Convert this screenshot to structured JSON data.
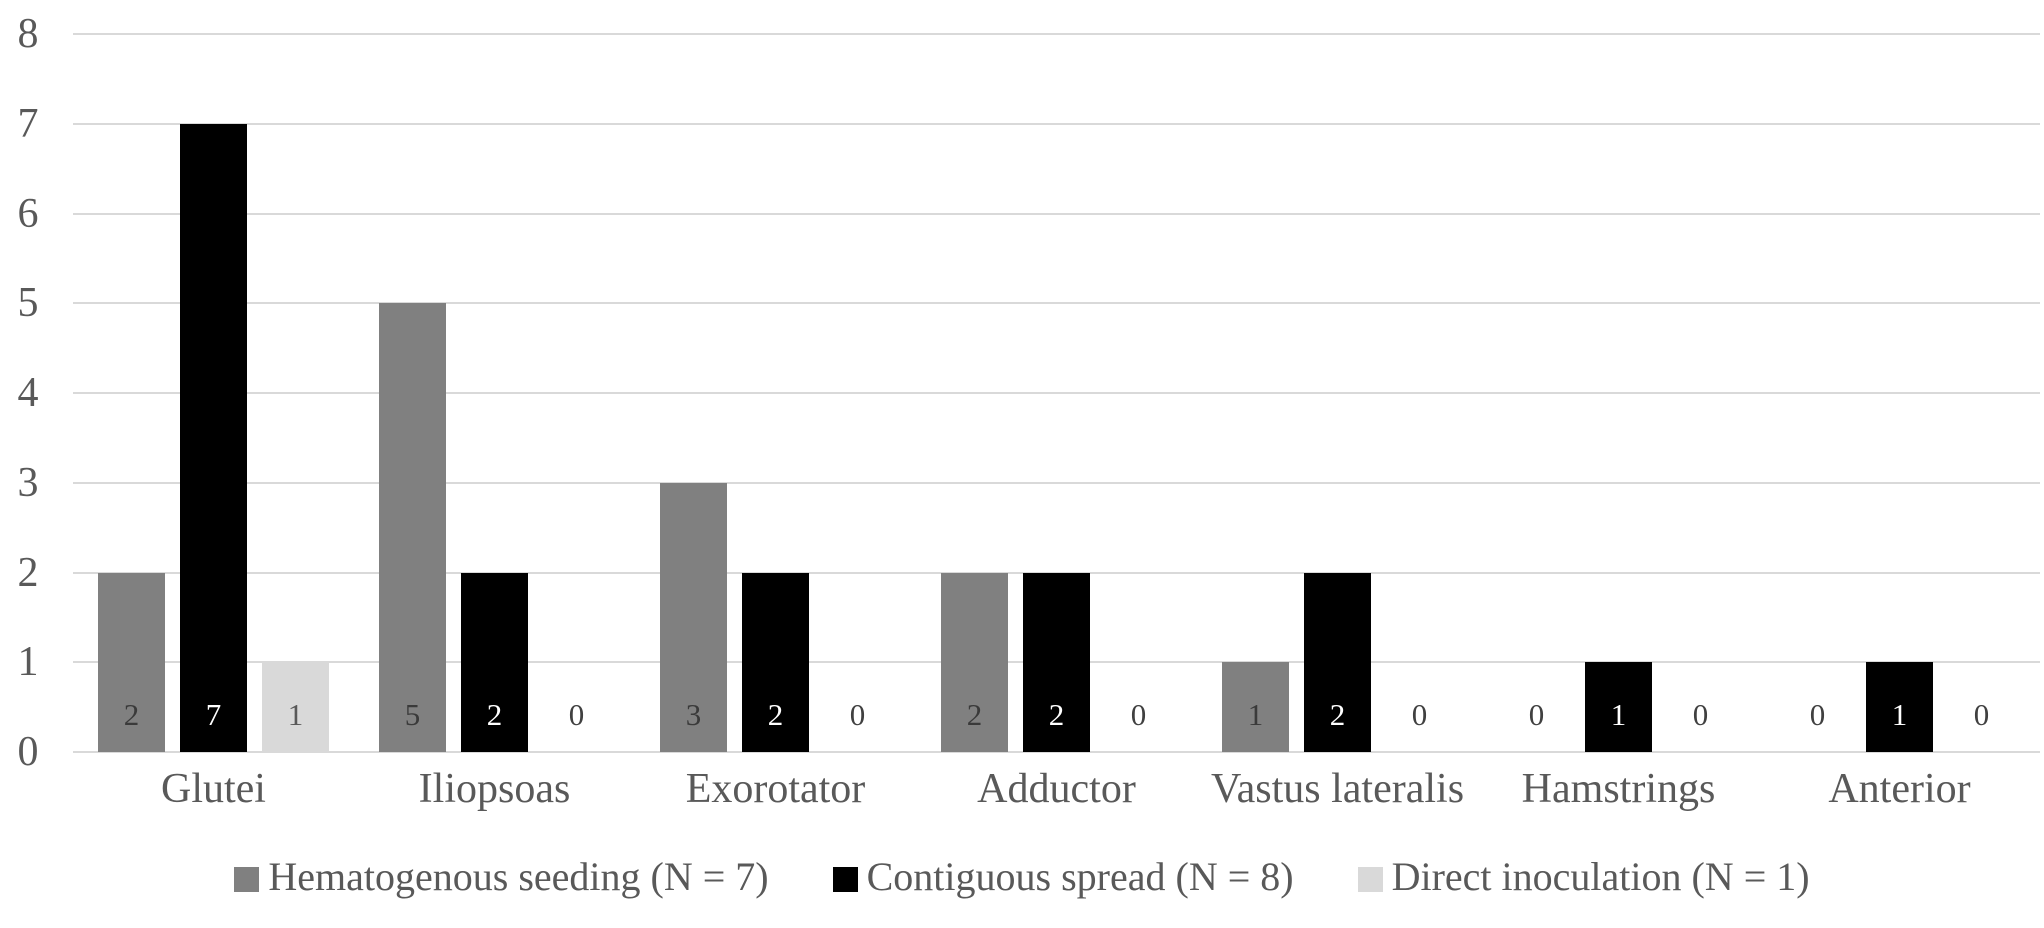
{
  "chart_data": {
    "type": "bar",
    "title": "",
    "xlabel": "",
    "ylabel": "",
    "categories": [
      "Glutei",
      "Iliopsoas",
      "Exorotator",
      "Adductor",
      "Vastus lateralis",
      "Hamstrings",
      "Anterior"
    ],
    "series": [
      {
        "name": "Hematogenous seeding (N = 7)",
        "color": "#808080",
        "in_bar_label_color": "#3a3a3a",
        "values": [
          2,
          5,
          3,
          2,
          1,
          0,
          0
        ]
      },
      {
        "name": "Contiguous spread (N = 8)",
        "color": "#000000",
        "in_bar_label_color": "#ffffff",
        "values": [
          7,
          2,
          2,
          2,
          2,
          1,
          1
        ]
      },
      {
        "name": "Direct inoculation (N = 1)",
        "color": "#d9d9d9",
        "in_bar_label_color": "#595959",
        "values": [
          1,
          0,
          0,
          0,
          0,
          0,
          0
        ]
      }
    ],
    "y_ticks": [
      0,
      1,
      2,
      3,
      4,
      5,
      6,
      7,
      8
    ],
    "ylim": [
      0,
      8
    ],
    "grid": true,
    "data_labels": true,
    "zero_label_color": "#404040",
    "axis_text_color": "#595959",
    "gridline_color": "#d9d9d9",
    "background_color": "#ffffff",
    "legend_position": "bottom"
  }
}
